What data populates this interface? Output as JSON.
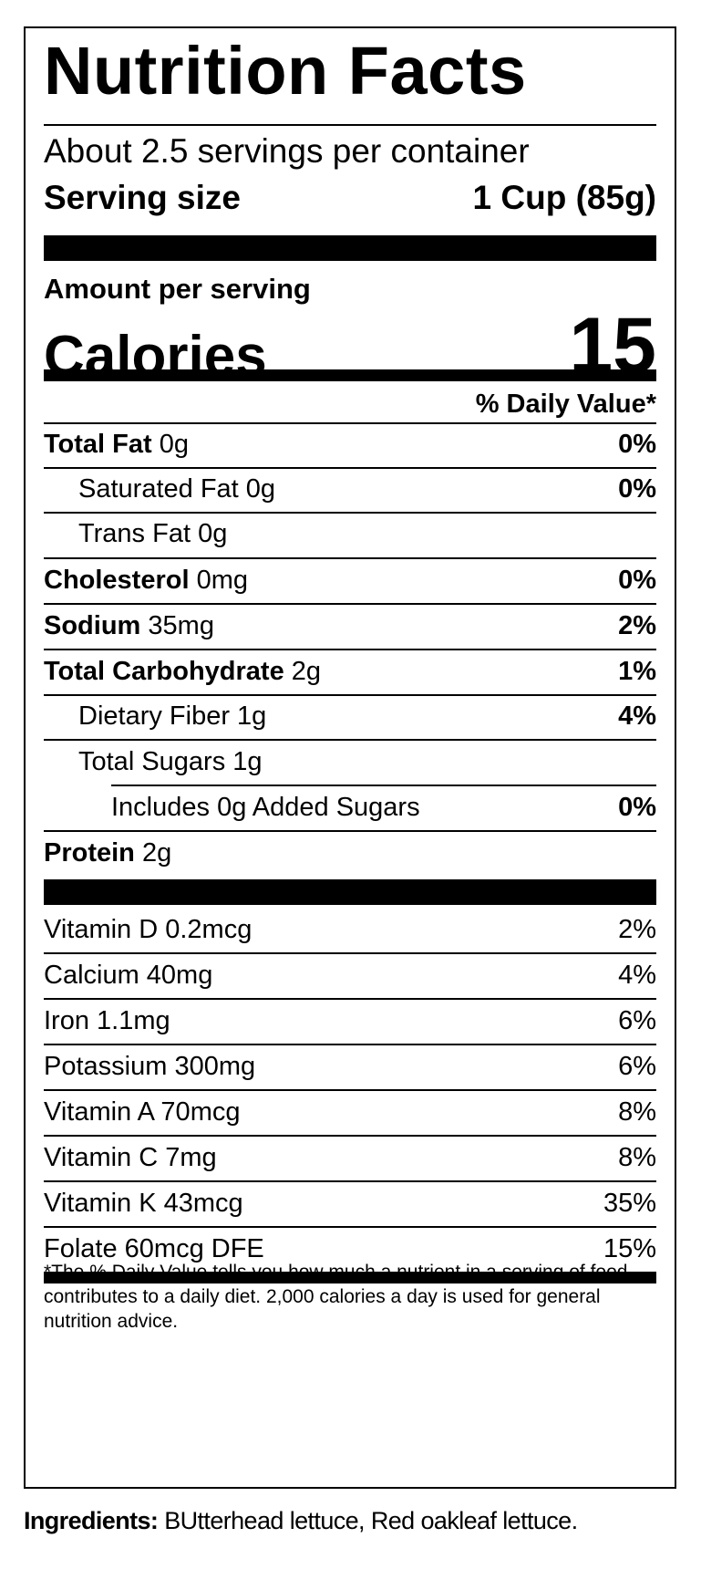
{
  "title": "Nutrition Facts",
  "servings_per_container": "About 2.5 servings per container",
  "serving_size_label": "Serving size",
  "serving_size_value": "1 Cup (85g)",
  "amount_per_serving": "Amount per serving",
  "calories_label": "Calories",
  "calories_value": "15",
  "daily_value_header": "% Daily Value*",
  "nutrients": [
    {
      "name": "Total Fat",
      "amount": "0g",
      "dv": "0%"
    },
    {
      "name": "Saturated Fat 0g",
      "dv": "0%"
    },
    {
      "name": "Trans Fat 0g",
      "dv": ""
    },
    {
      "name": "Cholesterol",
      "amount": "0mg",
      "dv": "0%"
    },
    {
      "name": "Sodium",
      "amount": "35mg",
      "dv": "2%"
    },
    {
      "name": "Total Carbohydrate",
      "amount": "2g",
      "dv": "1%"
    },
    {
      "name": "Dietary Fiber 1g",
      "dv": "4%"
    },
    {
      "name": "Total Sugars 1g",
      "dv": ""
    },
    {
      "name": "Includes 0g Added Sugars",
      "dv": "0%"
    },
    {
      "name": "Protein",
      "amount": "2g",
      "dv": ""
    }
  ],
  "vitamins": [
    {
      "name": "Vitamin D 0.2mcg",
      "dv": "2%"
    },
    {
      "name": "Calcium 40mg",
      "dv": "4%"
    },
    {
      "name": "Iron 1.1mg",
      "dv": "6%"
    },
    {
      "name": "Potassium 300mg",
      "dv": "6%"
    },
    {
      "name": "Vitamin A 70mcg",
      "dv": "8%"
    },
    {
      "name": "Vitamin C 7mg",
      "dv": "8%"
    },
    {
      "name": "Vitamin K 43mcg",
      "dv": "35%"
    },
    {
      "name": "Folate 60mcg DFE",
      "dv": "15%"
    }
  ],
  "footnote": "*The % Daily Value tells you how much a nutrient in a serving of food contributes to a daily diet. 2,000 calories a day is used for general nutrition advice.",
  "ingredients_label": "Ingredients:",
  "ingredients_text": "BUtterhead lettuce, Red oakleaf lettuce."
}
